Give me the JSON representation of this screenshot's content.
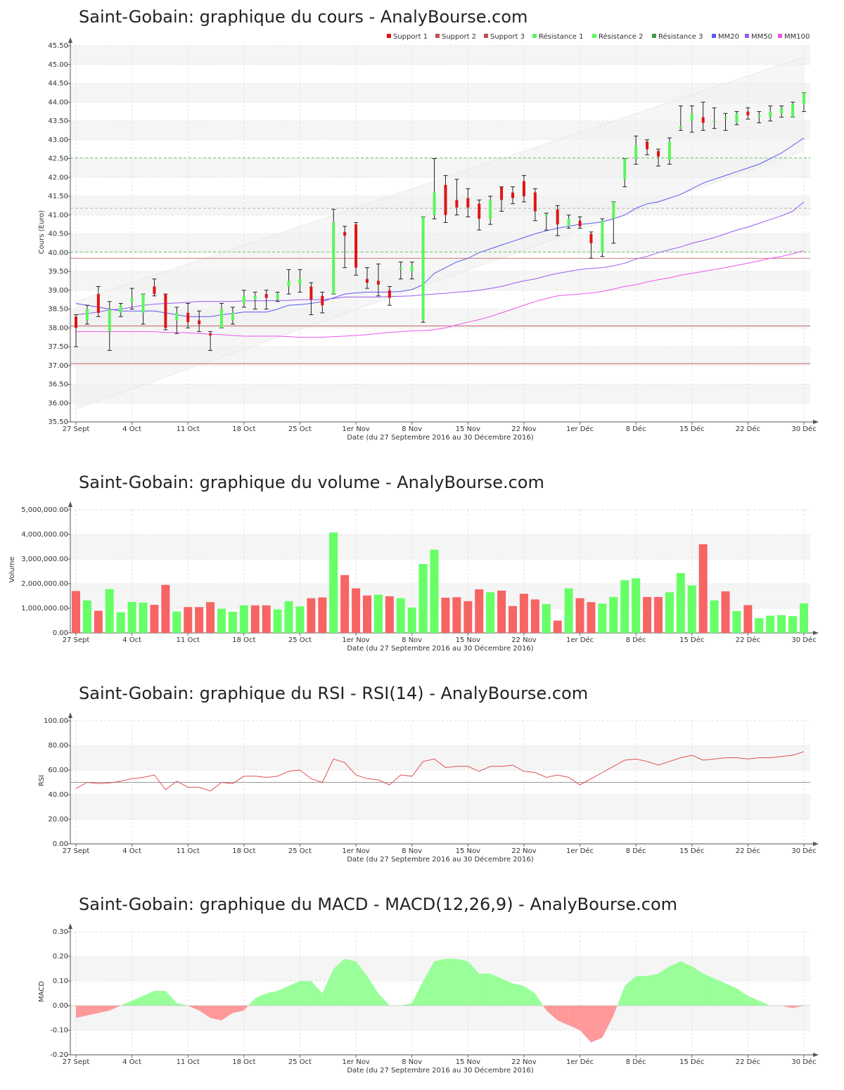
{
  "charts": {
    "price": {
      "title": "Saint-Gobain: graphique du cours - AnalyBourse.com"
    },
    "volume": {
      "title": "Saint-Gobain: graphique du volume - AnalyBourse.com"
    },
    "rsi": {
      "title": "Saint-Gobain: graphique du RSI - RSI(14) - AnalyBourse.com"
    },
    "macd": {
      "title": "Saint-Gobain: graphique du MACD - MACD(12,26,9) - AnalyBourse.com"
    }
  },
  "colors": {
    "up": "#5cf55c",
    "down": "#e01414",
    "vol_up": "#66ff66",
    "vol_down": "#f76464",
    "mm20": "#5b5bf0",
    "mm50": "#9b5bf0",
    "mm100": "#ee55ee",
    "support": "#c05050",
    "resistance": "#5cc05c",
    "resistance3": "#a0a0a0",
    "rsi_line": "#e05050",
    "macd_pos": "#99ff99",
    "macd_neg": "#ff9999",
    "band": "#f5f5f5"
  },
  "chart_data": [
    {
      "type": "candlestick",
      "title": "Saint-Gobain: graphique du cours - AnalyBourse.com",
      "ylabel": "Cours (Euro)",
      "xlabel": "Date (du 27 Septembre 2016 au 30 Décembre 2016)",
      "x_ticks": [
        "27 Sept",
        "4 Oct",
        "11 Oct",
        "18 Oct",
        "25 Oct",
        "1er Nov",
        "8 Nov",
        "15 Nov",
        "22 Nov",
        "1er Déc",
        "8 Déc",
        "15 Déc",
        "22 Déc",
        "30 Déc"
      ],
      "y_ticks": [
        "35.50",
        "36.00",
        "36.50",
        "37.00",
        "37.50",
        "38.00",
        "38.50",
        "39.00",
        "39.50",
        "40.00",
        "40.50",
        "41.00",
        "41.50",
        "42.00",
        "42.50",
        "43.00",
        "43.50",
        "44.00",
        "44.50",
        "45.00",
        "45.50"
      ],
      "ylim": [
        35.5,
        45.5
      ],
      "legend": [
        "Support 1",
        "Support 2",
        "Support 3",
        "Résistance 1",
        "Résistance 2",
        "Résistance 3",
        "MM20",
        "MM50",
        "MM100"
      ],
      "legend_position": "top-right",
      "candles": [
        {
          "o": 38.3,
          "h": 38.35,
          "l": 37.5,
          "c": 38.0
        },
        {
          "o": 38.2,
          "h": 38.6,
          "l": 38.1,
          "c": 38.5
        },
        {
          "o": 38.9,
          "h": 39.1,
          "l": 38.3,
          "c": 38.4
        },
        {
          "o": 37.9,
          "h": 38.7,
          "l": 37.4,
          "c": 38.5
        },
        {
          "o": 38.4,
          "h": 38.65,
          "l": 38.3,
          "c": 38.6
        },
        {
          "o": 38.7,
          "h": 39.05,
          "l": 38.5,
          "c": 38.8
        },
        {
          "o": 38.4,
          "h": 38.9,
          "l": 38.1,
          "c": 38.9
        },
        {
          "o": 39.1,
          "h": 39.3,
          "l": 38.85,
          "c": 38.9
        },
        {
          "o": 38.9,
          "h": 38.9,
          "l": 37.95,
          "c": 38.0
        },
        {
          "o": 38.2,
          "h": 38.55,
          "l": 37.85,
          "c": 38.4
        },
        {
          "o": 38.4,
          "h": 38.65,
          "l": 38.0,
          "c": 38.15
        },
        {
          "o": 38.2,
          "h": 38.45,
          "l": 37.9,
          "c": 38.1
        },
        {
          "o": 37.85,
          "h": 37.9,
          "l": 37.4,
          "c": 37.8
        },
        {
          "o": 38.0,
          "h": 38.65,
          "l": 38.0,
          "c": 38.5
        },
        {
          "o": 38.2,
          "h": 38.55,
          "l": 38.1,
          "c": 38.4
        },
        {
          "o": 38.65,
          "h": 39.0,
          "l": 38.55,
          "c": 38.85
        },
        {
          "o": 38.75,
          "h": 38.95,
          "l": 38.5,
          "c": 38.85
        },
        {
          "o": 38.9,
          "h": 39.0,
          "l": 38.5,
          "c": 38.8
        },
        {
          "o": 38.75,
          "h": 38.95,
          "l": 38.7,
          "c": 38.9
        },
        {
          "o": 39.1,
          "h": 39.55,
          "l": 38.9,
          "c": 39.25
        },
        {
          "o": 39.15,
          "h": 39.55,
          "l": 38.95,
          "c": 39.3
        },
        {
          "o": 39.1,
          "h": 39.2,
          "l": 38.35,
          "c": 38.75
        },
        {
          "o": 38.85,
          "h": 38.95,
          "l": 38.4,
          "c": 38.6
        },
        {
          "o": 38.9,
          "h": 41.15,
          "l": 38.9,
          "c": 40.8
        },
        {
          "o": 40.55,
          "h": 40.7,
          "l": 39.6,
          "c": 40.45
        },
        {
          "o": 40.75,
          "h": 40.8,
          "l": 39.4,
          "c": 39.6
        },
        {
          "o": 39.3,
          "h": 39.6,
          "l": 39.05,
          "c": 39.2
        },
        {
          "o": 39.25,
          "h": 39.7,
          "l": 38.85,
          "c": 39.15
        },
        {
          "o": 39.0,
          "h": 39.1,
          "l": 38.6,
          "c": 38.8
        },
        {
          "o": 39.55,
          "h": 39.75,
          "l": 39.3,
          "c": 39.6
        },
        {
          "o": 39.5,
          "h": 39.75,
          "l": 39.3,
          "c": 39.65
        },
        {
          "o": 38.2,
          "h": 40.95,
          "l": 38.15,
          "c": 40.95
        },
        {
          "o": 41.0,
          "h": 42.5,
          "l": 40.9,
          "c": 41.6
        },
        {
          "o": 41.8,
          "h": 42.05,
          "l": 40.8,
          "c": 41.0
        },
        {
          "o": 41.4,
          "h": 41.95,
          "l": 41.0,
          "c": 41.2
        },
        {
          "o": 41.45,
          "h": 41.7,
          "l": 40.95,
          "c": 41.2
        },
        {
          "o": 41.3,
          "h": 41.4,
          "l": 40.6,
          "c": 40.9
        },
        {
          "o": 40.9,
          "h": 41.5,
          "l": 40.75,
          "c": 41.4
        },
        {
          "o": 41.75,
          "h": 41.75,
          "l": 41.1,
          "c": 41.4
        },
        {
          "o": 41.6,
          "h": 41.75,
          "l": 41.3,
          "c": 41.45
        },
        {
          "o": 41.9,
          "h": 42.05,
          "l": 41.35,
          "c": 41.5
        },
        {
          "o": 41.6,
          "h": 41.7,
          "l": 40.85,
          "c": 41.1
        },
        {
          "o": 41.0,
          "h": 41.05,
          "l": 40.6,
          "c": 41.0
        },
        {
          "o": 41.15,
          "h": 41.25,
          "l": 40.45,
          "c": 40.75
        },
        {
          "o": 40.7,
          "h": 41.0,
          "l": 40.65,
          "c": 40.9
        },
        {
          "o": 40.85,
          "h": 40.95,
          "l": 40.65,
          "c": 40.7
        },
        {
          "o": 40.5,
          "h": 40.55,
          "l": 39.85,
          "c": 40.25
        },
        {
          "o": 40.0,
          "h": 40.9,
          "l": 39.9,
          "c": 40.85
        },
        {
          "o": 40.9,
          "h": 41.35,
          "l": 40.25,
          "c": 41.35
        },
        {
          "o": 41.95,
          "h": 42.5,
          "l": 41.75,
          "c": 42.5
        },
        {
          "o": 42.5,
          "h": 43.1,
          "l": 42.35,
          "c": 42.85
        },
        {
          "o": 42.95,
          "h": 43.0,
          "l": 42.6,
          "c": 42.75
        },
        {
          "o": 42.7,
          "h": 42.75,
          "l": 42.3,
          "c": 42.55
        },
        {
          "o": 42.45,
          "h": 43.05,
          "l": 42.35,
          "c": 42.95
        },
        {
          "o": 43.3,
          "h": 43.9,
          "l": 43.25,
          "c": 43.35
        },
        {
          "o": 43.5,
          "h": 43.9,
          "l": 43.2,
          "c": 43.7
        },
        {
          "o": 43.6,
          "h": 44.0,
          "l": 43.25,
          "c": 43.45
        },
        {
          "o": 43.5,
          "h": 43.85,
          "l": 43.3,
          "c": 43.5
        },
        {
          "o": 43.6,
          "h": 43.7,
          "l": 43.25,
          "c": 43.6
        },
        {
          "o": 43.45,
          "h": 43.75,
          "l": 43.4,
          "c": 43.7
        },
        {
          "o": 43.75,
          "h": 43.85,
          "l": 43.55,
          "c": 43.65
        },
        {
          "o": 43.6,
          "h": 43.75,
          "l": 43.45,
          "c": 43.65
        },
        {
          "o": 43.6,
          "h": 43.9,
          "l": 43.5,
          "c": 43.75
        },
        {
          "o": 43.7,
          "h": 43.9,
          "l": 43.6,
          "c": 43.85
        },
        {
          "o": 43.6,
          "h": 44.0,
          "l": 43.6,
          "c": 43.95
        },
        {
          "o": 43.95,
          "h": 44.25,
          "l": 43.75,
          "c": 44.25
        }
      ],
      "mm20": [
        38.65,
        38.6,
        38.55,
        38.5,
        38.45,
        38.45,
        38.45,
        38.45,
        38.4,
        38.35,
        38.3,
        38.3,
        38.3,
        38.35,
        38.38,
        38.42,
        38.42,
        38.42,
        38.5,
        38.6,
        38.62,
        38.65,
        38.7,
        38.8,
        38.9,
        38.93,
        38.95,
        38.95,
        38.95,
        38.97,
        39.02,
        39.15,
        39.45,
        39.6,
        39.75,
        39.85,
        40.0,
        40.1,
        40.2,
        40.3,
        40.4,
        40.5,
        40.58,
        40.65,
        40.7,
        40.75,
        40.78,
        40.82,
        40.9,
        41.0,
        41.18,
        41.3,
        41.35,
        41.45,
        41.55,
        41.7,
        41.85,
        41.95,
        42.05,
        42.15,
        42.25,
        42.35,
        42.5,
        42.65,
        42.85,
        43.05
      ],
      "mm50": [
        38.35,
        38.38,
        38.42,
        38.48,
        38.5,
        38.55,
        38.6,
        38.63,
        38.65,
        38.66,
        38.68,
        38.7,
        38.7,
        38.7,
        38.7,
        38.72,
        38.72,
        38.72,
        38.73,
        38.73,
        38.75,
        38.75,
        38.75,
        38.78,
        38.82,
        38.82,
        38.82,
        38.82,
        38.83,
        38.84,
        38.85,
        38.88,
        38.9,
        38.92,
        38.95,
        38.97,
        39.0,
        39.05,
        39.1,
        39.18,
        39.25,
        39.3,
        39.38,
        39.45,
        39.5,
        39.55,
        39.58,
        39.6,
        39.65,
        39.72,
        39.83,
        39.9,
        40.0,
        40.08,
        40.15,
        40.25,
        40.32,
        40.4,
        40.5,
        40.6,
        40.68,
        40.78,
        40.88,
        40.98,
        41.1,
        41.35
      ],
      "mm100": [
        37.9,
        37.9,
        37.9,
        37.9,
        37.9,
        37.9,
        37.9,
        37.9,
        37.88,
        37.88,
        37.87,
        37.85,
        37.83,
        37.82,
        37.8,
        37.78,
        37.78,
        37.78,
        37.78,
        37.77,
        37.75,
        37.75,
        37.75,
        37.77,
        37.78,
        37.8,
        37.82,
        37.85,
        37.88,
        37.9,
        37.92,
        37.93,
        37.95,
        38.0,
        38.08,
        38.15,
        38.22,
        38.3,
        38.4,
        38.5,
        38.6,
        38.7,
        38.78,
        38.85,
        38.88,
        38.9,
        38.93,
        38.97,
        39.03,
        39.1,
        39.15,
        39.22,
        39.28,
        39.33,
        39.4,
        39.45,
        39.5,
        39.55,
        39.6,
        39.66,
        39.72,
        39.78,
        39.85,
        39.9,
        39.97,
        40.05
      ],
      "support_lines": [
        38.05,
        39.85,
        37.05
      ],
      "resistance_lines": [
        42.52,
        41.18,
        40.02
      ],
      "trend_channel": {
        "upper": [
          38.7,
          45.2
        ],
        "lower": [
          35.85,
          42.7
        ]
      }
    },
    {
      "type": "bar",
      "title": "Saint-Gobain: graphique du volume - AnalyBourse.com",
      "ylabel": "Volume",
      "xlabel": "Date (du 27 Septembre 2016 au 30 Décembre 2016)",
      "x_ticks": [
        "27 Sept",
        "4 Oct",
        "11 Oct",
        "18 Oct",
        "25 Oct",
        "1er Nov",
        "8 Nov",
        "15 Nov",
        "22 Nov",
        "1er Déc",
        "8 Déc",
        "15 Déc",
        "22 Déc",
        "30 Déc"
      ],
      "y_ticks": [
        "0.00",
        "1,000,000.00",
        "2,000,000.00",
        "3,000,000.00",
        "4,000,000.00",
        "5,000,000.00"
      ],
      "ylim": [
        0,
        5000000
      ],
      "values": [
        1700000,
        1320000,
        900000,
        1780000,
        840000,
        1260000,
        1230000,
        1140000,
        1950000,
        870000,
        1050000,
        1050000,
        1250000,
        980000,
        860000,
        1120000,
        1120000,
        1120000,
        960000,
        1290000,
        1080000,
        1410000,
        1440000,
        4080000,
        2350000,
        1810000,
        1520000,
        1550000,
        1490000,
        1410000,
        1030000,
        2800000,
        3380000,
        1430000,
        1450000,
        1290000,
        1770000,
        1650000,
        1720000,
        1090000,
        1590000,
        1360000,
        1170000,
        500000,
        1810000,
        1410000,
        1250000,
        1190000,
        1460000,
        2140000,
        2220000,
        1460000,
        1460000,
        1650000,
        2430000,
        1930000,
        3600000,
        1320000,
        1690000,
        890000,
        1130000,
        600000,
        700000,
        720000,
        680000,
        1200000
      ],
      "up": [
        false,
        true,
        false,
        true,
        true,
        true,
        true,
        false,
        false,
        true,
        false,
        false,
        false,
        true,
        true,
        true,
        false,
        false,
        true,
        true,
        true,
        false,
        false,
        true,
        false,
        false,
        false,
        true,
        false,
        true,
        true,
        true,
        true,
        false,
        false,
        false,
        false,
        true,
        false,
        false,
        false,
        false,
        true,
        false,
        true,
        false,
        false,
        true,
        true,
        true,
        true,
        false,
        false,
        true,
        true,
        true,
        false,
        true,
        false,
        true,
        false,
        true,
        true,
        true,
        true,
        true
      ]
    },
    {
      "type": "line",
      "title": "Saint-Gobain: graphique du RSI - RSI(14) - AnalyBourse.com",
      "ylabel": "RSI",
      "xlabel": "Date (du 27 Septembre 2016 au 30 Décembre 2016)",
      "x_ticks": [
        "27 Sept",
        "4 Oct",
        "11 Oct",
        "18 Oct",
        "25 Oct",
        "1er Nov",
        "8 Nov",
        "15 Nov",
        "22 Nov",
        "1er Déc",
        "8 Déc",
        "15 Déc",
        "22 Déc",
        "30 Déc"
      ],
      "y_ticks": [
        "0.00",
        "20.00",
        "40.00",
        "60.00",
        "80.00",
        "100.00"
      ],
      "ylim": [
        0,
        100
      ],
      "reference_line": 50,
      "values": [
        45,
        50,
        49,
        49.5,
        51,
        53,
        54,
        56,
        44,
        51,
        46,
        46,
        43,
        50,
        49,
        55,
        55,
        54,
        55,
        59,
        60,
        53,
        50,
        69,
        66,
        56,
        53,
        52,
        48,
        56,
        55,
        67,
        69,
        62,
        63,
        63,
        59,
        63,
        63,
        64,
        59,
        58,
        54,
        56,
        54,
        48,
        53,
        58,
        63,
        68,
        69,
        67,
        64,
        67,
        70,
        72,
        68,
        69,
        70,
        70,
        69,
        70,
        70,
        71,
        72,
        75
      ]
    },
    {
      "type": "area",
      "title": "Saint-Gobain: graphique du MACD - MACD(12,26,9) - AnalyBourse.com",
      "ylabel": "MACD",
      "xlabel": "Date (du 27 Septembre 2016 au 30 Décembre 2016)",
      "x_ticks": [
        "27 Sept",
        "4 Oct",
        "11 Oct",
        "18 Oct",
        "25 Oct",
        "1er Nov",
        "8 Nov",
        "15 Nov",
        "22 Nov",
        "1er Déc",
        "8 Déc",
        "15 Déc",
        "22 Déc",
        "30 Déc"
      ],
      "y_ticks": [
        "-0.20",
        "-0.10",
        "0.00",
        "0.10",
        "0.20",
        "0.30"
      ],
      "ylim": [
        -0.2,
        0.3
      ],
      "values": [
        -0.05,
        -0.04,
        -0.03,
        -0.02,
        0.0,
        0.02,
        0.04,
        0.06,
        0.06,
        0.01,
        0.0,
        -0.02,
        -0.05,
        -0.06,
        -0.03,
        -0.02,
        0.03,
        0.05,
        0.06,
        0.08,
        0.1,
        0.1,
        0.05,
        0.15,
        0.19,
        0.18,
        0.12,
        0.05,
        0.0,
        0.0,
        0.01,
        0.1,
        0.18,
        0.19,
        0.19,
        0.18,
        0.13,
        0.13,
        0.11,
        0.09,
        0.08,
        0.05,
        -0.02,
        -0.06,
        -0.08,
        -0.1,
        -0.15,
        -0.13,
        -0.04,
        0.08,
        0.12,
        0.12,
        0.13,
        0.16,
        0.18,
        0.16,
        0.13,
        0.11,
        0.09,
        0.07,
        0.04,
        0.02,
        0.0,
        0.0,
        -0.01,
        0.0
      ]
    }
  ]
}
